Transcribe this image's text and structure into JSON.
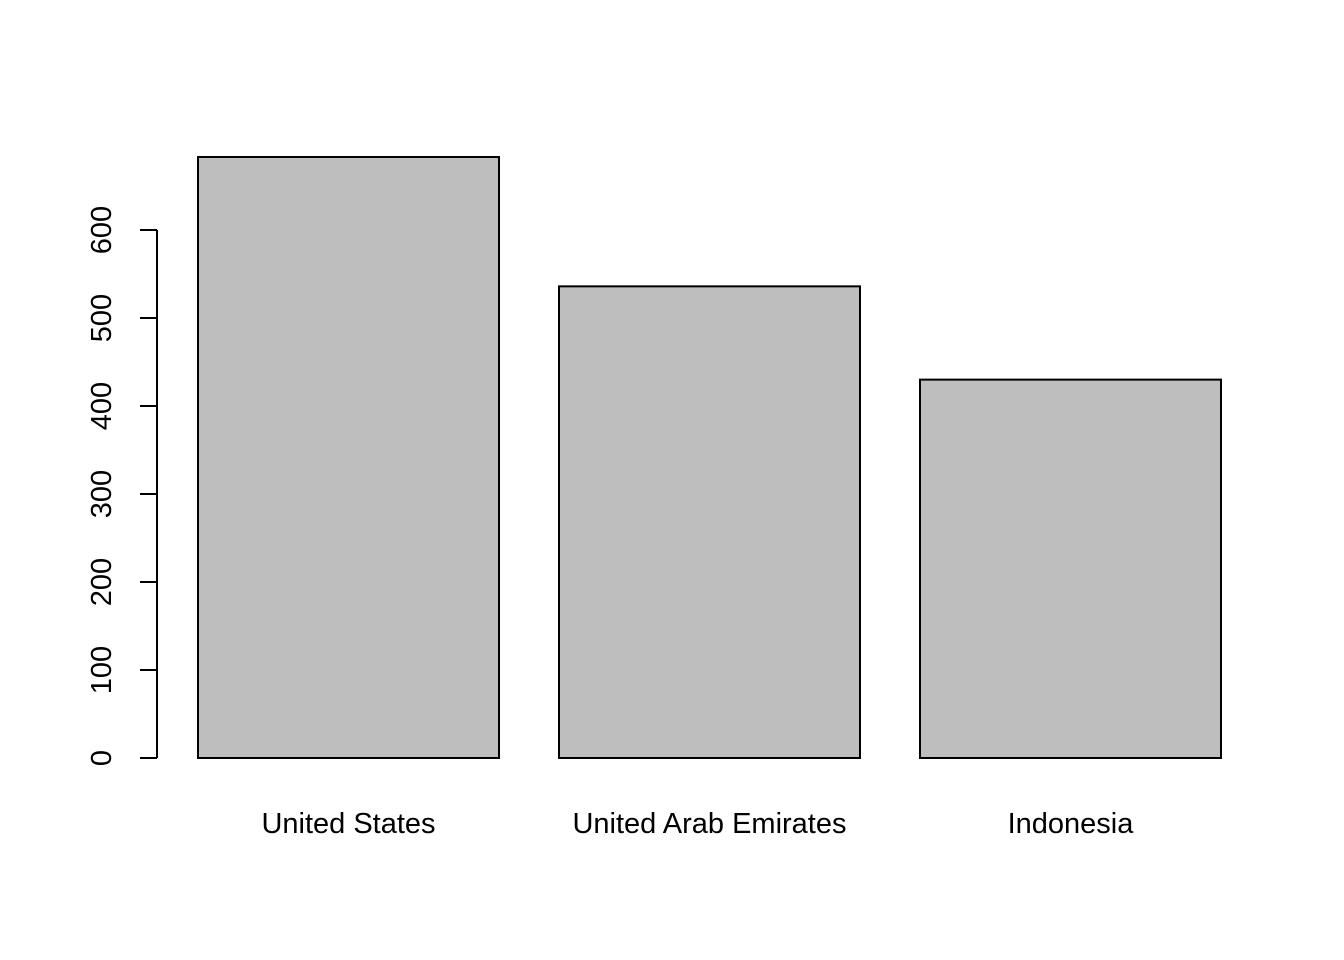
{
  "chart_data": {
    "type": "bar",
    "categories": [
      "United States",
      "United Arab Emirates",
      "Indonesia"
    ],
    "values": [
      683,
      536,
      430
    ],
    "title": "",
    "xlabel": "",
    "ylabel": "",
    "ylim": [
      0,
      683
    ],
    "yticks": [
      0,
      100,
      200,
      300,
      400,
      500,
      600
    ],
    "yticklabels": [
      "0",
      "100",
      "200",
      "300",
      "400",
      "500",
      "600"
    ],
    "grid": false,
    "legend": "none",
    "colors": {
      "bar_fill": "#bebebe",
      "bar_stroke": "#000000",
      "axis": "#000000",
      "background": "#ffffff"
    }
  }
}
